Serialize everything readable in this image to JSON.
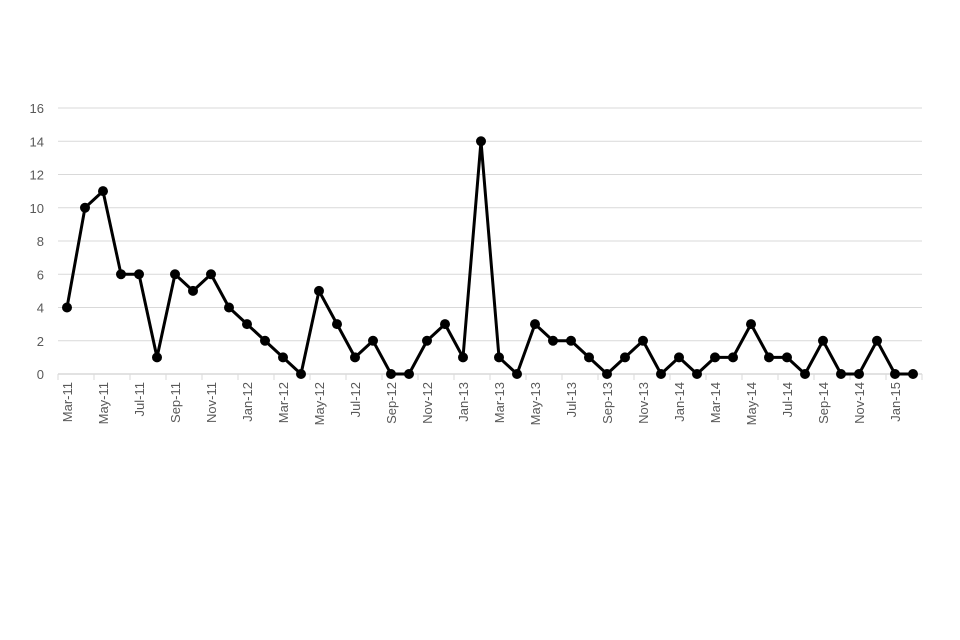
{
  "chart_data": {
    "type": "line",
    "title": "",
    "xlabel": "",
    "ylabel": "",
    "ylim": [
      0,
      16
    ],
    "yticks": [
      0,
      2,
      4,
      6,
      8,
      10,
      12,
      14,
      16
    ],
    "grid": true,
    "legend": "none",
    "line_color": "#000000",
    "grid_color": "#d9d9d9",
    "categories": [
      "Mar-11",
      "Apr-11",
      "May-11",
      "Jun-11",
      "Jul-11",
      "Aug-11",
      "Sep-11",
      "Oct-11",
      "Nov-11",
      "Dec-11",
      "Jan-12",
      "Feb-12",
      "Mar-12",
      "Apr-12",
      "May-12",
      "Jun-12",
      "Jul-12",
      "Aug-12",
      "Sep-12",
      "Oct-12",
      "Nov-12",
      "Dec-12",
      "Jan-13",
      "Feb-13",
      "Mar-13",
      "Apr-13",
      "May-13",
      "Jun-13",
      "Jul-13",
      "Aug-13",
      "Sep-13",
      "Oct-13",
      "Nov-13",
      "Dec-13",
      "Jan-14",
      "Feb-14",
      "Mar-14",
      "Apr-14",
      "May-14",
      "Jun-14",
      "Jul-14",
      "Aug-14",
      "Sep-14",
      "Oct-14",
      "Nov-14",
      "Dec-14",
      "Jan-15",
      "Feb-15"
    ],
    "tick_labels": [
      "Mar-11",
      "May-11",
      "Jul-11",
      "Sep-11",
      "Nov-11",
      "Jan-12",
      "Mar-12",
      "May-12",
      "Jul-12",
      "Sep-12",
      "Nov-12",
      "Jan-13",
      "Mar-13",
      "May-13",
      "Jul-13",
      "Sep-13",
      "Nov-13",
      "Jan-14",
      "Mar-14",
      "May-14",
      "Jul-14",
      "Sep-14",
      "Nov-14",
      "Jan-15"
    ],
    "values": [
      4,
      10,
      11,
      6,
      6,
      1,
      6,
      5,
      6,
      4,
      3,
      2,
      1,
      0,
      5,
      3,
      1,
      2,
      0,
      0,
      2,
      3,
      1,
      14,
      1,
      0,
      3,
      2,
      2,
      1,
      0,
      1,
      2,
      0,
      1,
      0,
      1,
      1,
      3,
      1,
      1,
      0,
      2,
      0,
      0,
      2,
      0,
      0
    ]
  }
}
